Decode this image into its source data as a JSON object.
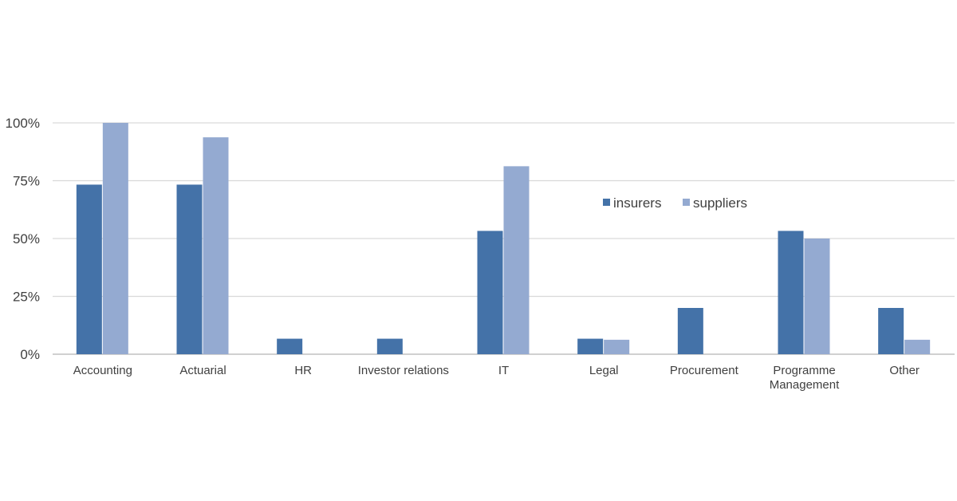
{
  "chart_data": {
    "type": "bar",
    "categories": [
      "Accounting",
      "Actuarial",
      "HR",
      "Investor relations",
      "IT",
      "Legal",
      "Procurement",
      "Programme Management",
      "Other"
    ],
    "category_lines": [
      [
        "Accounting"
      ],
      [
        "Actuarial"
      ],
      [
        "HR"
      ],
      [
        "Investor relations"
      ],
      [
        "IT"
      ],
      [
        "Legal"
      ],
      [
        "Procurement"
      ],
      [
        "Programme",
        "Management"
      ],
      [
        "Other"
      ]
    ],
    "series": [
      {
        "name": "insurers",
        "color": "#4472a8",
        "values": [
          73.3,
          73.3,
          6.7,
          6.7,
          53.3,
          6.7,
          20,
          53.3,
          20
        ]
      },
      {
        "name": "suppliers",
        "color": "#94aad1",
        "values": [
          100,
          93.75,
          0,
          0,
          81.25,
          6.25,
          0,
          50,
          6.25
        ]
      }
    ],
    "ylim": [
      0,
      100
    ],
    "yticks": [
      0,
      25,
      50,
      75,
      100
    ],
    "ytick_labels": [
      "0%",
      "25%",
      "50%",
      "75%",
      "100%"
    ],
    "grid": true,
    "legend_position": "inside-top-right"
  }
}
